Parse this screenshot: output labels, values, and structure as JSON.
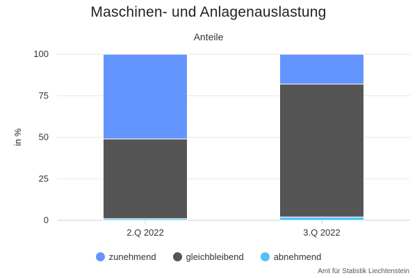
{
  "chart_data": {
    "type": "bar",
    "stacked": true,
    "title": "Maschinen- und Anlagenauslastung",
    "subtitle": "Anteile",
    "ylabel": "in %",
    "xlabel": "",
    "ylim": [
      0,
      100
    ],
    "yticks": [
      0,
      25,
      50,
      75,
      100
    ],
    "grid": true,
    "legend_position": "bottom",
    "categories": [
      "2.Q 2022",
      "3.Q 2022"
    ],
    "series": [
      {
        "name": "abnehmend",
        "color": "#4FC3F7",
        "values": [
          1,
          2
        ]
      },
      {
        "name": "gleichbleibend",
        "color": "#555555",
        "values": [
          48,
          80
        ]
      },
      {
        "name": "zunehmend",
        "color": "#6495FF",
        "values": [
          51,
          18
        ]
      }
    ],
    "legend_order": [
      "zunehmend",
      "gleichbleibend",
      "abnehmend"
    ],
    "credit": "Amt für Statistik Liechtenstein"
  }
}
